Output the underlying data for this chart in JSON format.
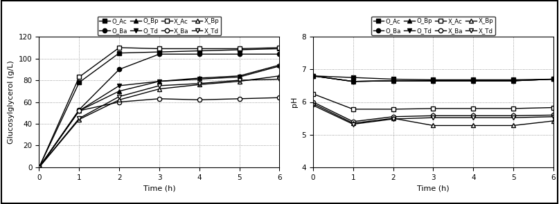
{
  "time": [
    0,
    1,
    2,
    3,
    4,
    5,
    6
  ],
  "glc": {
    "O_Ac": [
      0,
      78,
      105,
      106,
      107,
      108,
      109
    ],
    "O_Ba": [
      0,
      53,
      90,
      104,
      104,
      104,
      104
    ],
    "O_Bp": [
      0,
      52,
      70,
      79,
      82,
      84,
      94
    ],
    "O_Td": [
      0,
      52,
      75,
      79,
      81,
      83,
      93
    ],
    "X_Ac": [
      0,
      83,
      110,
      109,
      109,
      109,
      110
    ],
    "X_Ba": [
      0,
      52,
      60,
      63,
      62,
      63,
      64
    ],
    "X_Bp": [
      0,
      44,
      62,
      72,
      76,
      79,
      84
    ],
    "X_Td": [
      0,
      45,
      65,
      75,
      77,
      80,
      81
    ]
  },
  "ph": {
    "O_Ac": [
      6.8,
      6.75,
      6.7,
      6.68,
      6.68,
      6.68,
      6.7
    ],
    "O_Ba": [
      6.8,
      6.63,
      6.65,
      6.65,
      6.65,
      6.65,
      6.7
    ],
    "O_Bp": [
      6.8,
      6.63,
      6.65,
      6.65,
      6.65,
      6.65,
      6.7
    ],
    "O_Td": [
      6.8,
      6.63,
      6.65,
      6.65,
      6.65,
      6.65,
      6.7
    ],
    "X_Ac": [
      6.25,
      5.78,
      5.78,
      5.8,
      5.8,
      5.8,
      5.83
    ],
    "X_Ba": [
      6.0,
      5.4,
      5.55,
      5.58,
      5.58,
      5.58,
      5.6
    ],
    "X_Bp": [
      5.95,
      5.35,
      5.5,
      5.28,
      5.28,
      5.28,
      5.42
    ],
    "X_Td": [
      5.9,
      5.32,
      5.48,
      5.52,
      5.52,
      5.52,
      5.55
    ]
  },
  "series_filled": [
    "O_Ac",
    "O_Ba",
    "O_Bp",
    "O_Td"
  ],
  "series_open": [
    "X_Ac",
    "X_Ba",
    "X_Bp",
    "X_Td"
  ],
  "markers_filled": [
    "s",
    "o",
    "^",
    "v"
  ],
  "markers_open": [
    "s",
    "o",
    "^",
    "v"
  ],
  "ylabel_left": "Glucosylglycerol (g/L)",
  "ylabel_right": "pH",
  "xlabel": "Time (h)",
  "ylim_left": [
    0,
    120
  ],
  "ylim_right": [
    4,
    8
  ],
  "yticks_left": [
    0,
    20,
    40,
    60,
    80,
    100,
    120
  ],
  "yticks_right": [
    4,
    5,
    6,
    7,
    8
  ],
  "xticks": [
    0,
    1,
    2,
    3,
    4,
    5,
    6
  ]
}
